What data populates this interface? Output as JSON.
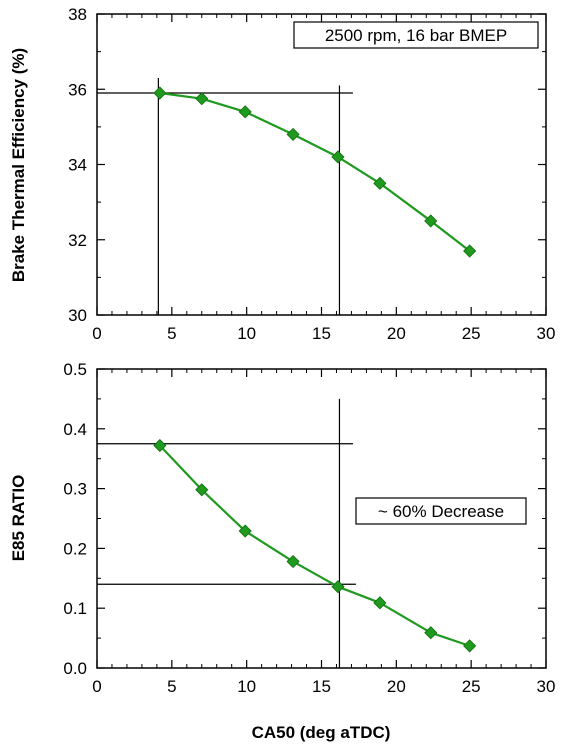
{
  "chart_data": [
    {
      "type": "line",
      "ylabel": "Brake Thermal Efficiency (%)",
      "xlabel": "",
      "xlim": [
        0,
        30
      ],
      "ylim": [
        30,
        38
      ],
      "xticks": [
        0,
        5,
        10,
        15,
        20,
        25,
        30
      ],
      "yticks": [
        30,
        32,
        34,
        36,
        38
      ],
      "grid": false,
      "x": [
        4.2,
        7.0,
        9.9,
        13.1,
        16.1,
        18.9,
        22.3,
        24.9
      ],
      "series": [
        {
          "values": [
            35.9,
            35.75,
            35.4,
            34.8,
            34.2,
            33.5,
            32.5,
            31.7
          ],
          "color": "#1f9a1f",
          "marker": "diamond"
        }
      ],
      "annotation": "2500 rpm, 16 bar BMEP",
      "reference_lines": {
        "horizontal": [
          {
            "y": 35.9,
            "x_from": 0,
            "x_to": 17.1
          }
        ],
        "vertical": [
          {
            "x": 4.1,
            "y_from": 30,
            "y_to": 36.3
          },
          {
            "x": 16.2,
            "y_from": 30,
            "y_to": 36.1
          }
        ]
      }
    },
    {
      "type": "line",
      "ylabel": "E85 RATIO",
      "xlabel": "CA50 (deg aTDC)",
      "xlim": [
        0,
        30
      ],
      "ylim": [
        0,
        0.5
      ],
      "xticks": [
        0,
        5,
        10,
        15,
        20,
        25,
        30
      ],
      "yticks": [
        0.0,
        0.1,
        0.2,
        0.3,
        0.4,
        0.5
      ],
      "ytick_labels": [
        "0.0",
        "0.1",
        "0.2",
        "0.3",
        "0.4",
        "0.5"
      ],
      "grid": false,
      "x": [
        4.2,
        7.0,
        9.9,
        13.1,
        16.1,
        18.9,
        22.3,
        24.9
      ],
      "series": [
        {
          "values": [
            0.372,
            0.298,
            0.229,
            0.178,
            0.136,
            0.109,
            0.059,
            0.037
          ],
          "color": "#1f9a1f",
          "marker": "diamond"
        }
      ],
      "annotation": "~ 60% Decrease",
      "reference_lines": {
        "horizontal": [
          {
            "y": 0.375,
            "x_from": 0,
            "x_to": 17.1
          },
          {
            "y": 0.14,
            "x_from": 0,
            "x_to": 17.3
          }
        ],
        "vertical": [
          {
            "x": 16.2,
            "y_from": 0,
            "y_to": 0.45
          }
        ]
      }
    }
  ]
}
